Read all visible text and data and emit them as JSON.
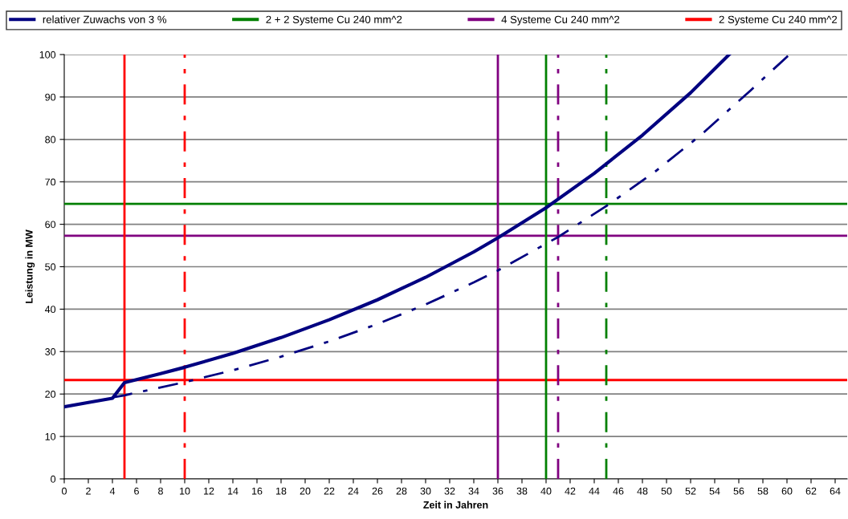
{
  "chart_data": {
    "type": "line",
    "xlabel": "Zeit in Jahren",
    "ylabel": "Leistung in MW",
    "xlim": [
      0,
      65
    ],
    "ylim": [
      0,
      100
    ],
    "xticks": [
      0,
      2,
      4,
      6,
      8,
      10,
      12,
      14,
      16,
      18,
      20,
      22,
      24,
      26,
      28,
      30,
      32,
      34,
      36,
      38,
      40,
      42,
      44,
      46,
      48,
      50,
      52,
      54,
      56,
      58,
      60,
      62,
      64
    ],
    "yticks": [
      0,
      10,
      20,
      30,
      40,
      50,
      60,
      70,
      80,
      90,
      100
    ],
    "grid": "y",
    "legend": "top",
    "marker": "none",
    "series": [
      {
        "name": "relativer Zuwachs von 3 %",
        "color": "#000080",
        "line_style": "solid",
        "x": [
          0,
          2,
          4,
          5,
          8,
          10,
          14,
          18,
          22,
          26,
          30,
          34,
          36,
          40,
          44,
          48,
          52,
          55.2
        ],
        "values": [
          17,
          18,
          19,
          22.7,
          24.8,
          26.3,
          29.6,
          33.3,
          37.5,
          42.2,
          47.5,
          53.5,
          56.8,
          63.9,
          72,
          81,
          91,
          100
        ]
      },
      {
        "color": "#000080",
        "line_style": "dashdot",
        "x": [
          4,
          5,
          10,
          14,
          18,
          22,
          26,
          30,
          34,
          36,
          41,
          45,
          49,
          53,
          57,
          60.2
        ],
        "values": [
          19.2,
          19.7,
          22.8,
          25.6,
          28.8,
          32.4,
          36.5,
          41.1,
          46.3,
          49.1,
          57,
          64.3,
          72.3,
          81.4,
          91.6,
          100
        ]
      }
    ],
    "ref_lines": [
      {
        "axis": "y",
        "value": 64.8,
        "label": "2 + 2 Systeme Cu 240 mm^2",
        "color": "#008000",
        "line_style": "solid"
      },
      {
        "axis": "y",
        "value": 57.3,
        "label": "4 Systeme Cu 240 mm^2",
        "color": "#800080",
        "line_style": "solid"
      },
      {
        "axis": "y",
        "value": 23.3,
        "label": "2 Systeme Cu 240 mm^2",
        "color": "#ff0000",
        "line_style": "solid"
      },
      {
        "axis": "x",
        "value": 5,
        "color": "#ff0000",
        "line_style": "solid"
      },
      {
        "axis": "x",
        "value": 10,
        "color": "#ff0000",
        "line_style": "dashdot"
      },
      {
        "axis": "x",
        "value": 36,
        "color": "#800080",
        "line_style": "solid"
      },
      {
        "axis": "x",
        "value": 41,
        "color": "#800080",
        "line_style": "dashdot"
      },
      {
        "axis": "x",
        "value": 40,
        "color": "#008000",
        "line_style": "solid"
      },
      {
        "axis": "x",
        "value": 45,
        "color": "#008000",
        "line_style": "dashdot"
      }
    ]
  }
}
